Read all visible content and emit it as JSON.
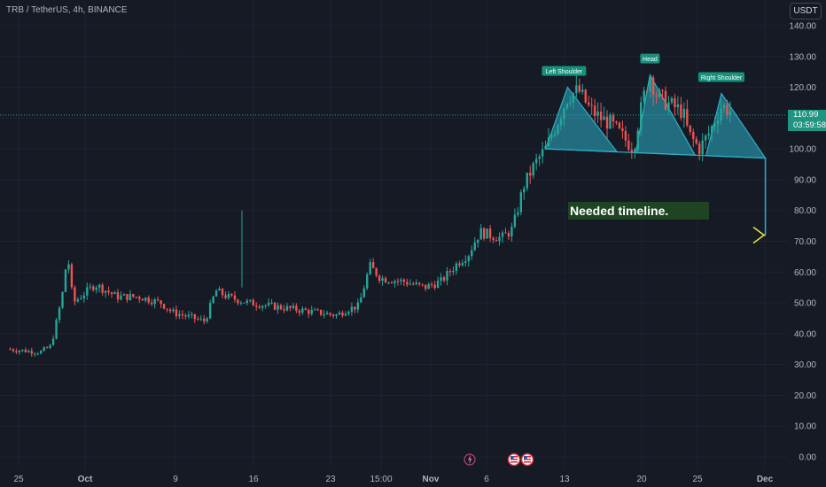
{
  "header": {
    "symbol": "TRB / TetherUS, 4h, BINANCE",
    "currency": "USDT"
  },
  "price_tag": {
    "price": "110.99",
    "countdown": "03:59:58"
  },
  "colors": {
    "background": "#161a25",
    "up": "#26a69a",
    "down": "#ef5350",
    "pattern_fill": "#2bb0c8",
    "arrow": "#f5ee3d",
    "annotation_bg": "#1e4422",
    "label_bg": "#17907c"
  },
  "annotation": {
    "text": "Needed timeline."
  },
  "pattern_labels": {
    "left_shoulder": "Left Shoulder",
    "head": "Head",
    "right_shoulder": "Right Shoulder"
  },
  "event_icons": [
    "lightning-icon",
    "us-flag-icon",
    "us-flag-icon"
  ],
  "chart_data": {
    "type": "candlestick",
    "y_ticks": [
      "140.00",
      "130.00",
      "120.00",
      "110.00",
      "100.00",
      "90.00",
      "80.00",
      "70.00",
      "60.00",
      "50.00",
      "40.00",
      "30.00",
      "20.00",
      "10.00",
      "0.00"
    ],
    "x_ticks": [
      "25",
      "Oct",
      "9",
      "16",
      "23",
      "15:00",
      "Nov",
      "6",
      "13",
      "20",
      "25",
      "Dec"
    ],
    "ylim": [
      -2,
      142
    ],
    "last_price": 110.99,
    "grid": true,
    "price_path": [
      [
        0,
        35
      ],
      [
        3,
        34
      ],
      [
        4,
        36
      ],
      [
        5,
        52
      ],
      [
        5.5,
        66
      ],
      [
        6,
        50
      ],
      [
        8,
        56
      ],
      [
        10,
        52
      ],
      [
        12,
        52
      ],
      [
        14,
        50
      ],
      [
        15,
        47
      ],
      [
        17,
        45
      ],
      [
        18,
        44
      ],
      [
        19,
        54
      ],
      [
        20,
        52
      ],
      [
        22,
        50
      ],
      [
        24,
        49
      ],
      [
        26,
        48
      ],
      [
        28,
        47
      ],
      [
        30,
        46
      ],
      [
        31,
        48
      ],
      [
        32,
        49
      ],
      [
        33,
        62
      ],
      [
        34,
        58
      ],
      [
        36,
        57
      ],
      [
        38,
        55
      ],
      [
        39.5,
        57
      ],
      [
        41,
        63
      ],
      [
        42,
        66
      ],
      [
        43,
        73
      ],
      [
        44,
        72
      ],
      [
        45,
        71
      ],
      [
        46,
        74
      ],
      [
        47,
        88
      ],
      [
        48,
        95
      ],
      [
        49,
        100
      ],
      [
        50,
        108
      ],
      [
        51,
        117
      ],
      [
        52,
        119
      ],
      [
        53,
        113
      ],
      [
        54,
        110
      ],
      [
        55,
        108
      ],
      [
        56,
        104
      ],
      [
        57,
        100
      ],
      [
        57.5,
        110
      ],
      [
        58,
        118
      ],
      [
        58.5,
        124
      ],
      [
        59,
        118
      ],
      [
        60,
        115
      ],
      [
        61,
        113
      ],
      [
        61.5,
        112
      ],
      [
        62,
        105
      ],
      [
        63,
        100
      ],
      [
        64,
        106
      ],
      [
        65,
        114
      ],
      [
        66,
        112
      ]
    ],
    "pattern": {
      "neckline": [
        [
          49,
          100
        ],
        [
          69,
          97
        ]
      ],
      "left_shoulder_peak": [
        51,
        120
      ],
      "head_peak": [
        58.5,
        124
      ],
      "right_shoulder_peak": [
        65,
        118
      ]
    },
    "projection": {
      "drop": [
        [
          69,
          97
        ],
        [
          69,
          72
        ]
      ],
      "arrow": [
        [
          69,
          72
        ],
        [
          107,
          72
        ]
      ]
    }
  }
}
